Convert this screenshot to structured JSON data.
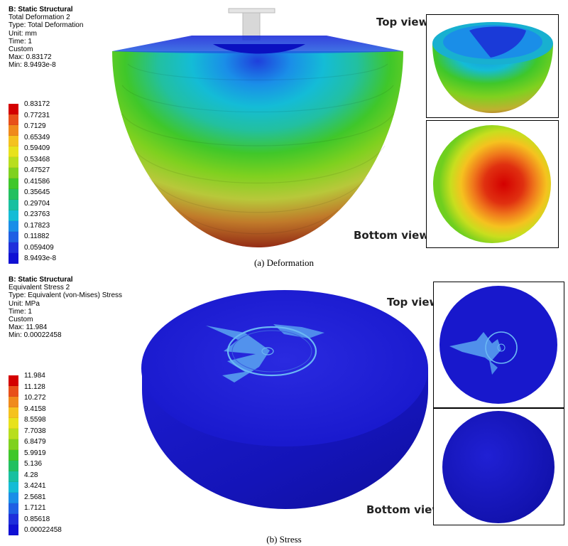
{
  "deformation": {
    "info": {
      "title": "B: Static Structural",
      "name": "Total Deformation 2",
      "type": "Type: Total Deformation",
      "unit": "Unit: mm",
      "time": "Time: 1",
      "mode": "Custom",
      "max": "Max: 0.83172",
      "min": "Min: 8.9493e-8"
    },
    "legend": [
      "0.83172",
      "0.77231",
      "0.7129",
      "0.65349",
      "0.59409",
      "0.53468",
      "0.47527",
      "0.41586",
      "0.35645",
      "0.29704",
      "0.23763",
      "0.17823",
      "0.11882",
      "0.059409",
      "8.9493e-8"
    ],
    "colors": [
      "#d40000",
      "#e8501a",
      "#f08a1c",
      "#f5c21f",
      "#e8e21c",
      "#b8de1e",
      "#7fd11f",
      "#3fc72a",
      "#22c060",
      "#18c0a0",
      "#14bcd6",
      "#1a8ee8",
      "#1f5fe4",
      "#1f2fdc",
      "#1010d4"
    ],
    "top_view_label": "Top view",
    "bottom_view_label": "Bottom view",
    "caption": "(a)  Deformation"
  },
  "stress": {
    "info": {
      "title": "B: Static Structural",
      "name": "Equivalent Stress 2",
      "type": "Type: Equivalent (von-Mises) Stress",
      "unit": "Unit: MPa",
      "time": "Time: 1",
      "mode": "Custom",
      "max": "Max: 11.984",
      "min": "Min: 0.00022458"
    },
    "legend": [
      "11.984",
      "11.128",
      "10.272",
      "9.4158",
      "8.5598",
      "7.7038",
      "6.8479",
      "5.9919",
      "5.136",
      "4.28",
      "3.4241",
      "2.5681",
      "1.7121",
      "0.85618",
      "0.00022458"
    ],
    "colors": [
      "#d40000",
      "#e8501a",
      "#f08a1c",
      "#f5c21f",
      "#e8e21c",
      "#b8de1e",
      "#7fd11f",
      "#3fc72a",
      "#22c060",
      "#18c0a0",
      "#14bcd6",
      "#1a8ee8",
      "#1f5fe4",
      "#1f2fdc",
      "#1010d4"
    ],
    "top_view_label": "Top view",
    "bottom_view_label": "Bottom view",
    "caption": "(b)  Stress"
  }
}
